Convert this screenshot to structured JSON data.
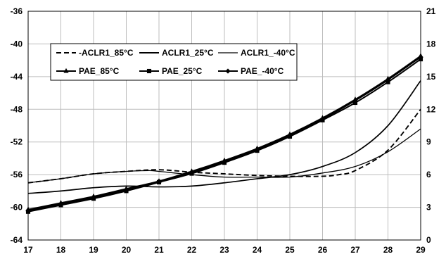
{
  "chart_data": {
    "type": "line",
    "title": "",
    "xlabel": "",
    "ylabel": "",
    "y2label": "",
    "xlim": [
      17,
      29
    ],
    "ylim": [
      -64,
      -36
    ],
    "y2lim": [
      0,
      21
    ],
    "x_ticks": [
      17,
      18,
      19,
      20,
      21,
      22,
      23,
      24,
      25,
      26,
      27,
      28,
      29
    ],
    "y_ticks": [
      -36,
      -40,
      -44,
      -48,
      -52,
      -56,
      -60,
      -64
    ],
    "y2_ticks": [
      21,
      18,
      15,
      12,
      9,
      6,
      3,
      0
    ],
    "grid": true,
    "legend_position": "top-left (inside plot)",
    "series": [
      {
        "name": "-ACLR1_85°C",
        "axis": "left",
        "line": "dashed",
        "marker": "none",
        "x": [
          17,
          18,
          19,
          20,
          21,
          22,
          23,
          24,
          25,
          26,
          26.5,
          27,
          28,
          29
        ],
        "y": [
          -57.0,
          -56.5,
          -55.9,
          -55.6,
          -55.4,
          -55.7,
          -55.9,
          -56.1,
          -56.2,
          -56.2,
          -56.0,
          -55.5,
          -53.0,
          -48.0
        ]
      },
      {
        "name": "ACLR1_25°C",
        "axis": "left",
        "line": "solid",
        "marker": "none",
        "x": [
          17,
          18,
          19,
          20,
          21,
          22,
          23,
          24,
          25,
          26,
          27,
          28,
          29
        ],
        "y": [
          -58.3,
          -58.0,
          -57.6,
          -57.4,
          -57.5,
          -57.4,
          -57.0,
          -56.5,
          -56.0,
          -55.0,
          -53.3,
          -50.0,
          -44.5
        ]
      },
      {
        "name": "ACLR1_-40°C",
        "axis": "left",
        "line": "solid-thin",
        "marker": "none",
        "x": [
          17,
          18,
          19,
          20,
          20.7,
          21,
          22,
          23,
          24,
          25,
          26,
          27,
          28,
          29
        ],
        "y": [
          -57.0,
          -56.5,
          -55.9,
          -55.6,
          -55.5,
          -55.6,
          -56.0,
          -56.3,
          -56.3,
          -56.3,
          -55.8,
          -55.0,
          -53.2,
          -50.4
        ]
      },
      {
        "name": "PAE_85°C",
        "axis": "right",
        "line": "solid",
        "marker": "triangle",
        "x": [
          17,
          18,
          19,
          20,
          21,
          22,
          23,
          24,
          25,
          26,
          27,
          28,
          29
        ],
        "y": [
          2.8,
          3.4,
          4.0,
          4.7,
          5.4,
          6.3,
          7.3,
          8.4,
          9.7,
          11.2,
          12.9,
          14.8,
          16.9
        ]
      },
      {
        "name": "PAE_25°C",
        "axis": "right",
        "line": "solid",
        "marker": "square",
        "x": [
          17,
          18,
          19,
          20,
          21,
          22,
          23,
          24,
          25,
          26,
          27,
          28,
          29
        ],
        "y": [
          2.6,
          3.2,
          3.8,
          4.5,
          5.3,
          6.1,
          7.1,
          8.2,
          9.5,
          11.0,
          12.6,
          14.5,
          16.6
        ]
      },
      {
        "name": "PAE_-40°C",
        "axis": "right",
        "line": "solid",
        "marker": "diamond",
        "x": [
          17,
          18,
          19,
          20,
          21,
          22,
          23,
          24,
          25,
          26,
          27,
          28,
          29
        ],
        "y": [
          2.7,
          3.3,
          3.9,
          4.6,
          5.4,
          6.2,
          7.2,
          8.3,
          9.6,
          11.1,
          12.8,
          14.7,
          16.8
        ]
      }
    ]
  }
}
